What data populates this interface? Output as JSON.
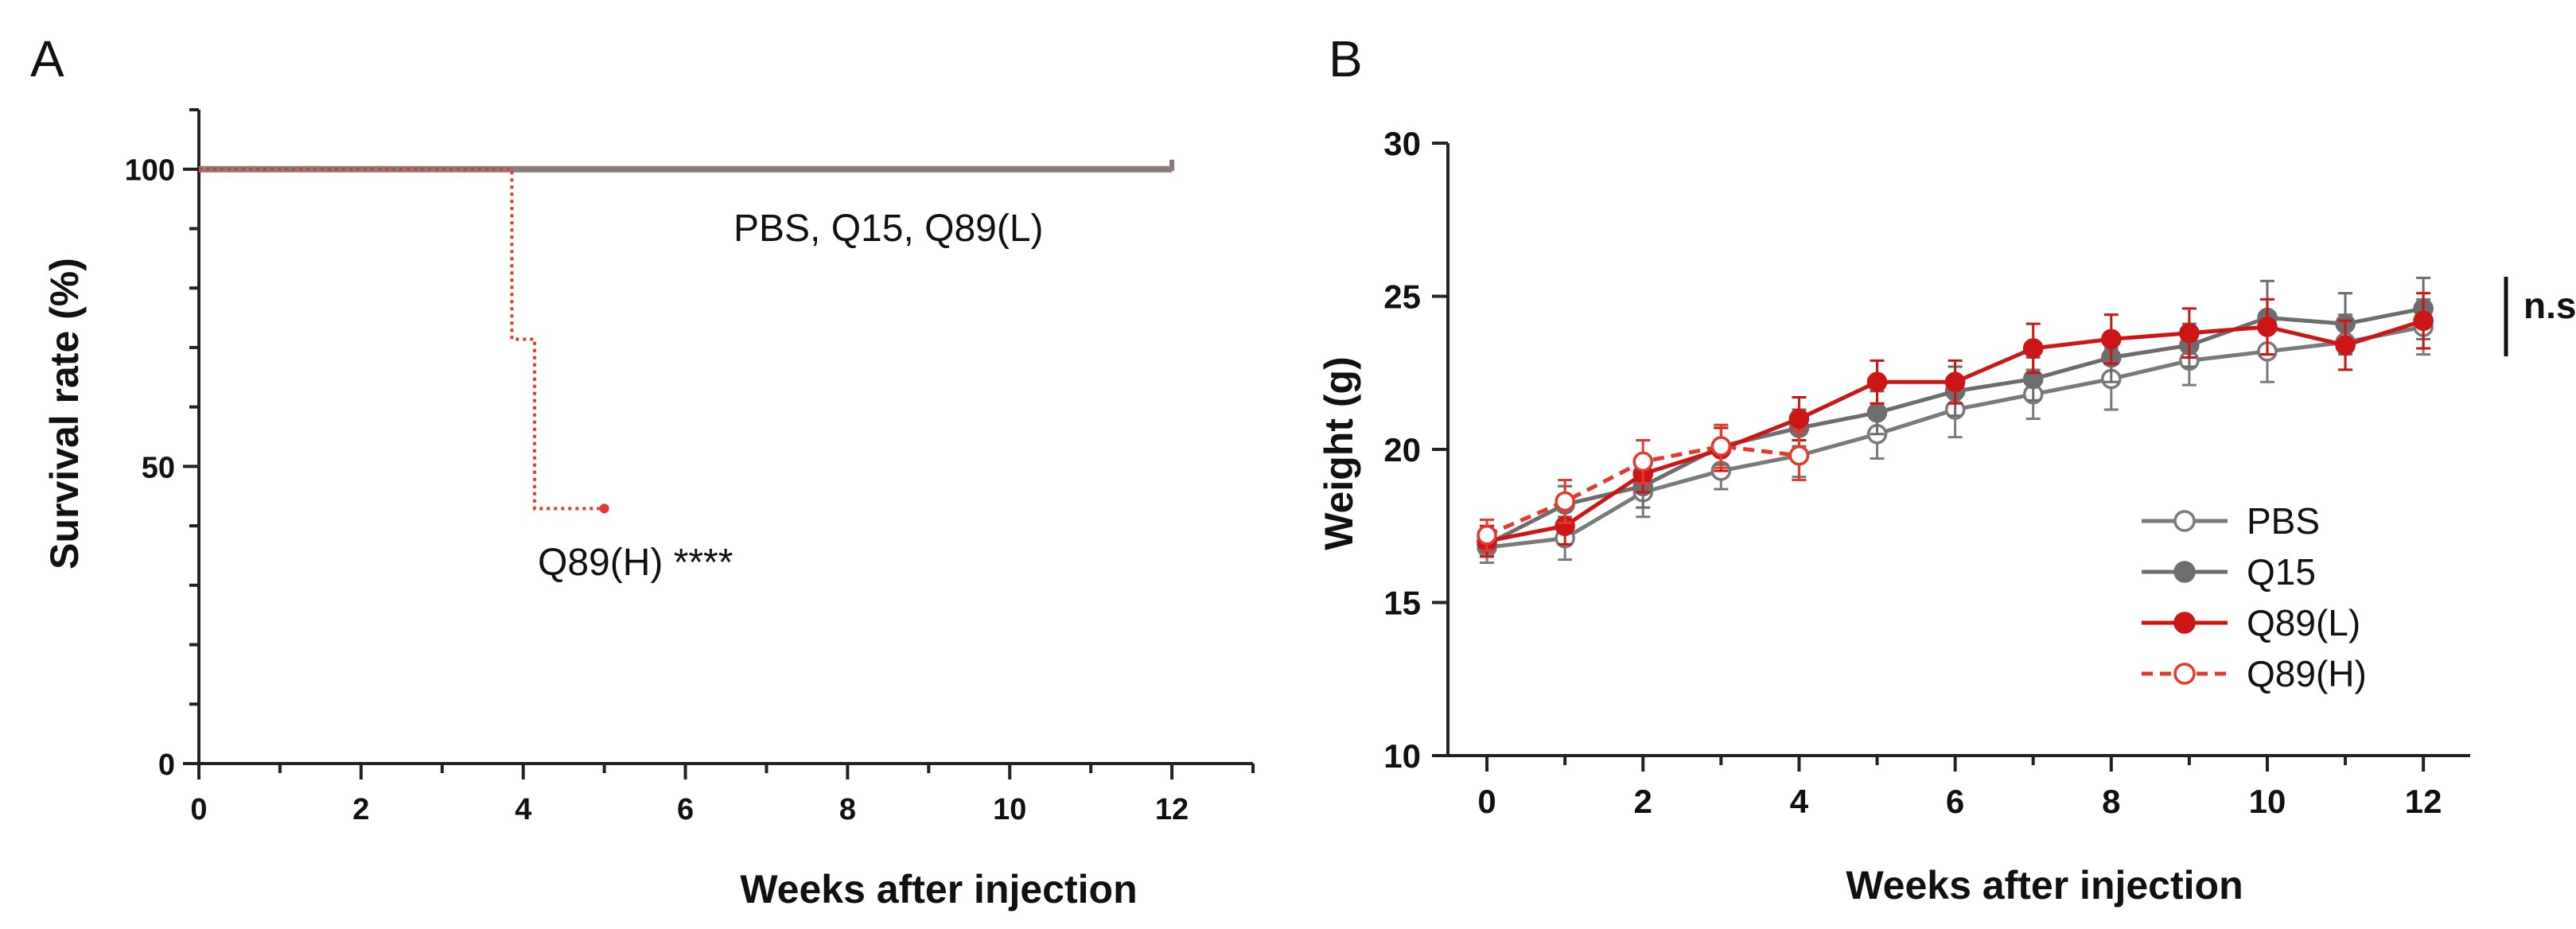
{
  "colors": {
    "pbs": "#7a7a7a",
    "q15": "#6d6d6d",
    "q89l": "#cc1616",
    "q89h": "#e23a2e",
    "survival_control": "#8a7a78",
    "axis": "#222222",
    "text": "#111111"
  },
  "chart_data": [
    {
      "type": "line",
      "panel_label": "A",
      "title": "",
      "xlabel": "Weeks after injection",
      "ylabel": "Survival rate (%)",
      "xlim": [
        0,
        13
      ],
      "ylim": [
        0,
        110
      ],
      "xticks": [
        0,
        2,
        4,
        6,
        8,
        10,
        12
      ],
      "xtick_labels": [
        "0",
        "2",
        "4",
        "6",
        "8",
        "10",
        "12"
      ],
      "yticks": [
        0,
        50,
        100
      ],
      "ytick_labels": [
        "0",
        "50",
        "100"
      ],
      "series": [
        {
          "name": "PBS, Q15, Q89(L)",
          "label": "PBS, Q15, Q89(L)",
          "style": "step-solid",
          "points": [
            [
              0,
              100
            ],
            [
              12,
              100
            ]
          ]
        },
        {
          "name": "Q89(H)",
          "label": "Q89(H) ****",
          "style": "step-dotted",
          "points": [
            [
              0,
              100
            ],
            [
              3.86,
              100
            ],
            [
              3.86,
              71.4
            ],
            [
              4.14,
              71.4
            ],
            [
              4.14,
              42.9
            ],
            [
              5,
              42.9
            ]
          ]
        }
      ]
    },
    {
      "type": "line",
      "panel_label": "B",
      "title": "",
      "xlabel": "Weeks after injection",
      "ylabel": "Weight (g)",
      "xlim": [
        -0.5,
        12.6
      ],
      "ylim": [
        10,
        30
      ],
      "xticks": [
        0,
        2,
        4,
        6,
        8,
        10,
        12
      ],
      "xtick_labels": [
        "0",
        "2",
        "4",
        "6",
        "8",
        "10",
        "12"
      ],
      "yticks": [
        10,
        15,
        20,
        25,
        30
      ],
      "ytick_labels": [
        "10",
        "15",
        "20",
        "25",
        "30"
      ],
      "annotation": "n.s",
      "legend_position": "bottom-right",
      "series": [
        {
          "name": "PBS",
          "marker": "open-circle",
          "line": "solid",
          "x": [
            0,
            1,
            2,
            3,
            4,
            5,
            6,
            7,
            8,
            9,
            10,
            11,
            12
          ],
          "values": [
            16.8,
            17.1,
            18.6,
            19.3,
            19.8,
            20.5,
            21.3,
            21.8,
            22.3,
            22.9,
            23.2,
            23.5,
            24.0
          ],
          "errors": [
            0.5,
            0.7,
            0.8,
            0.6,
            0.7,
            0.8,
            0.9,
            0.8,
            1.0,
            0.8,
            1.0,
            0.9,
            0.9
          ]
        },
        {
          "name": "Q15",
          "marker": "filled-circle",
          "line": "solid",
          "x": [
            0,
            1,
            2,
            3,
            4,
            5,
            6,
            7,
            8,
            9,
            10,
            11,
            12
          ],
          "values": [
            16.9,
            18.2,
            18.8,
            20.1,
            20.7,
            21.2,
            21.9,
            22.3,
            23.0,
            23.4,
            24.3,
            24.1,
            24.6
          ],
          "errors": [
            0.4,
            0.6,
            0.7,
            0.6,
            0.6,
            0.7,
            0.8,
            0.7,
            0.8,
            0.7,
            1.2,
            1.0,
            1.0
          ]
        },
        {
          "name": "Q89(L)",
          "marker": "filled-circle",
          "line": "solid",
          "x": [
            0,
            1,
            2,
            3,
            4,
            5,
            6,
            7,
            8,
            9,
            10,
            11,
            12
          ],
          "values": [
            17.0,
            17.5,
            19.2,
            20.0,
            21.0,
            22.2,
            22.2,
            23.3,
            23.6,
            23.8,
            24.0,
            23.4,
            24.2
          ],
          "errors": [
            0.5,
            0.6,
            0.6,
            0.7,
            0.7,
            0.7,
            0.7,
            0.8,
            0.8,
            0.8,
            0.9,
            0.8,
            0.9
          ]
        },
        {
          "name": "Q89(H)",
          "marker": "open-circle",
          "line": "dashed",
          "x": [
            0,
            1,
            2,
            3,
            4
          ],
          "values": [
            17.2,
            18.3,
            19.6,
            20.1,
            19.8
          ],
          "errors": [
            0.5,
            0.7,
            0.7,
            0.7,
            0.8
          ]
        }
      ]
    }
  ]
}
